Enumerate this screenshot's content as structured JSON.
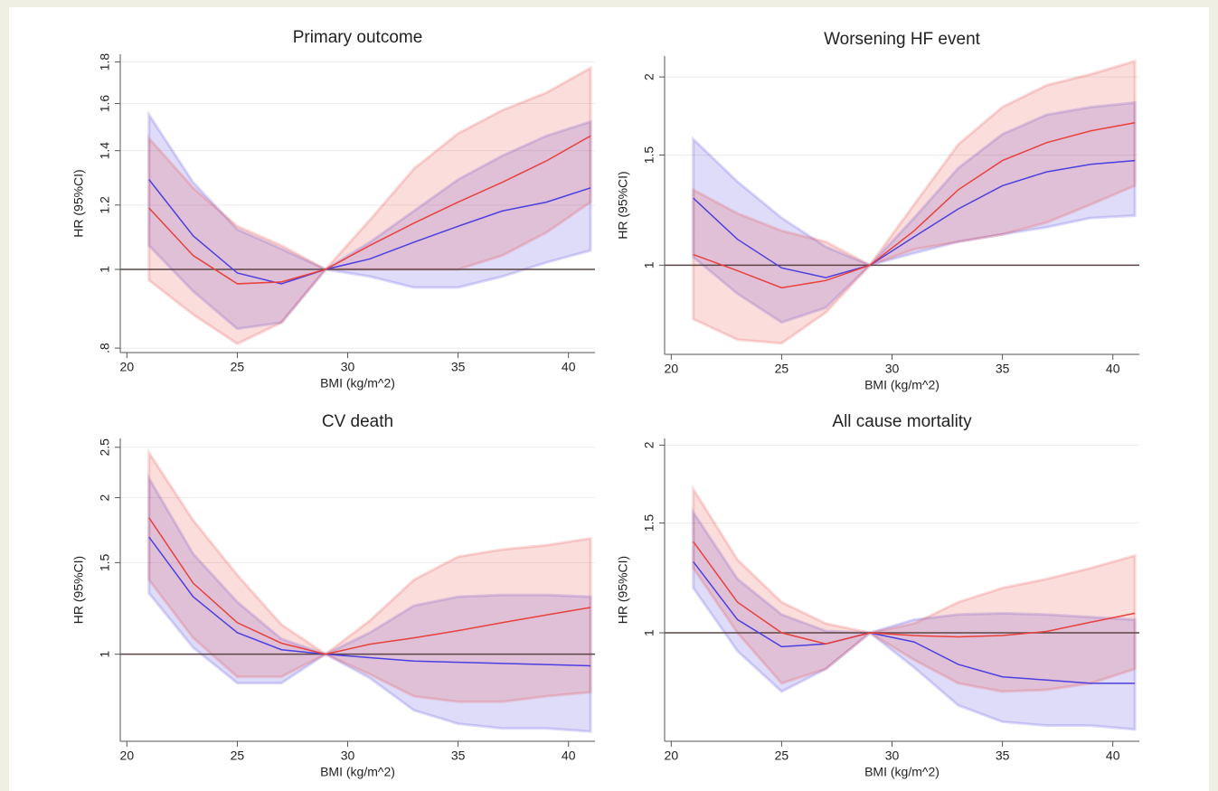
{
  "chart_data": [
    {
      "type": "line",
      "title": "Primary outcome",
      "xlabel": "BMI (kg/m^2)",
      "ylabel": "HR (95%CI)",
      "log_y": true,
      "grid": true,
      "refline": 1,
      "x": [
        21,
        23,
        25,
        27,
        29,
        31,
        33,
        35,
        37,
        39,
        41
      ],
      "xlim": [
        19.7,
        41.2
      ],
      "xticks": [
        20,
        25,
        30,
        35,
        40
      ],
      "ylim": [
        0.79,
        1.84
      ],
      "yticks": [
        {
          "value": 0.8,
          "label": ".8"
        },
        1,
        1.2,
        1.4,
        1.6,
        1.8
      ],
      "series": [
        {
          "color": "#4b3fe0",
          "values": [
            1.29,
            1.1,
            0.99,
            0.96,
            1,
            1.03,
            1.08,
            1.13,
            1.18,
            1.21,
            1.26
          ],
          "lower": [
            1.07,
            0.94,
            0.845,
            0.86,
            1,
            0.98,
            0.95,
            0.95,
            0.98,
            1.02,
            1.055
          ],
          "upper": [
            1.55,
            1.28,
            1.12,
            1.06,
            1,
            1.08,
            1.18,
            1.29,
            1.38,
            1.46,
            1.52
          ]
        },
        {
          "color": "#e8413c",
          "values": [
            1.19,
            1.04,
            0.96,
            0.965,
            1,
            1.07,
            1.14,
            1.21,
            1.28,
            1.36,
            1.46
          ],
          "lower": [
            0.97,
            0.88,
            0.81,
            0.86,
            1,
            1.0,
            1.0,
            1.0,
            1.04,
            1.11,
            1.21
          ],
          "upper": [
            1.45,
            1.26,
            1.13,
            1.07,
            1,
            1.15,
            1.33,
            1.47,
            1.57,
            1.65,
            1.77
          ]
        }
      ]
    },
    {
      "type": "line",
      "title": "Worsening HF event",
      "xlabel": "BMI (kg/m^2)",
      "ylabel": "HR (95%CI)",
      "log_y": true,
      "grid": true,
      "refline": 1,
      "x": [
        21,
        23,
        25,
        27,
        29,
        31,
        33,
        35,
        37,
        39,
        41
      ],
      "xlim": [
        19.7,
        41.2
      ],
      "xticks": [
        20,
        25,
        30,
        35,
        40
      ],
      "ylim": [
        0.72,
        2.16
      ],
      "yticks": [
        1,
        1.5,
        2
      ],
      "series": [
        {
          "color": "#4b3fe0",
          "values": [
            1.28,
            1.1,
            0.99,
            0.955,
            1,
            1.11,
            1.23,
            1.34,
            1.41,
            1.45,
            1.47
          ],
          "lower": [
            1.03,
            0.9,
            0.81,
            0.855,
            1,
            1.045,
            1.09,
            1.12,
            1.15,
            1.19,
            1.2
          ],
          "upper": [
            1.59,
            1.36,
            1.19,
            1.07,
            1,
            1.19,
            1.43,
            1.62,
            1.74,
            1.79,
            1.82
          ]
        },
        {
          "color": "#e8413c",
          "values": [
            1.04,
            0.98,
            0.92,
            0.945,
            1,
            1.135,
            1.32,
            1.47,
            1.57,
            1.64,
            1.69
          ],
          "lower": [
            0.82,
            0.76,
            0.75,
            0.84,
            1,
            1.06,
            1.09,
            1.12,
            1.17,
            1.25,
            1.34
          ],
          "upper": [
            1.32,
            1.21,
            1.135,
            1.09,
            1,
            1.25,
            1.56,
            1.79,
            1.94,
            2.02,
            2.12
          ]
        }
      ]
    },
    {
      "type": "line",
      "title": "CV death",
      "xlabel": "BMI (kg/m^2)",
      "ylabel": "HR (95%CI)",
      "log_y": true,
      "grid": true,
      "refline": 1,
      "x": [
        21,
        23,
        25,
        27,
        29,
        31,
        33,
        35,
        37,
        39,
        41
      ],
      "xlim": [
        19.7,
        41.2
      ],
      "xticks": [
        20,
        25,
        30,
        35,
        40
      ],
      "ylim": [
        0.68,
        2.6
      ],
      "yticks": [
        1,
        1.5,
        2,
        2.5
      ],
      "series": [
        {
          "color": "#4b3fe0",
          "values": [
            1.68,
            1.29,
            1.1,
            1.02,
            1,
            0.985,
            0.97,
            0.965,
            0.96,
            0.955,
            0.95
          ],
          "lower": [
            1.31,
            1.03,
            0.88,
            0.88,
            1,
            0.9,
            0.78,
            0.735,
            0.72,
            0.72,
            0.71
          ],
          "upper": [
            2.18,
            1.56,
            1.26,
            1.07,
            1,
            1.1,
            1.24,
            1.29,
            1.3,
            1.3,
            1.29
          ]
        },
        {
          "color": "#e8413c",
          "values": [
            1.83,
            1.37,
            1.15,
            1.05,
            1,
            1.045,
            1.075,
            1.11,
            1.15,
            1.19,
            1.23
          ],
          "lower": [
            1.39,
            1.075,
            0.905,
            0.905,
            1,
            0.915,
            0.83,
            0.81,
            0.81,
            0.83,
            0.845
          ],
          "upper": [
            2.44,
            1.81,
            1.42,
            1.14,
            1,
            1.16,
            1.39,
            1.54,
            1.59,
            1.62,
            1.67
          ]
        }
      ]
    },
    {
      "type": "line",
      "title": "All cause mortality",
      "xlabel": "BMI (kg/m^2)",
      "ylabel": "HR (95%CI)",
      "log_y": true,
      "grid": true,
      "refline": 1,
      "x": [
        21,
        23,
        25,
        27,
        29,
        31,
        33,
        35,
        37,
        39,
        41
      ],
      "xlim": [
        19.7,
        41.2
      ],
      "xticks": [
        20,
        25,
        30,
        35,
        40
      ],
      "ylim": [
        0.67,
        2.05
      ],
      "yticks": [
        1,
        1.5,
        2
      ],
      "series": [
        {
          "color": "#4b3fe0",
          "values": [
            1.3,
            1.05,
            0.95,
            0.96,
            1,
            0.967,
            0.89,
            0.85,
            0.84,
            0.83,
            0.83
          ],
          "lower": [
            1.18,
            0.935,
            0.805,
            0.875,
            1,
            0.88,
            0.765,
            0.72,
            0.71,
            0.71,
            0.7
          ],
          "upper": [
            1.56,
            1.22,
            1.07,
            1.007,
            1,
            1.05,
            1.07,
            1.075,
            1.07,
            1.06,
            1.05
          ]
        },
        {
          "color": "#e8413c",
          "values": [
            1.4,
            1.12,
            1.0,
            0.96,
            1,
            0.99,
            0.985,
            0.99,
            1.005,
            1.04,
            1.075
          ],
          "lower": [
            1.27,
            1.0,
            0.83,
            0.875,
            1,
            0.905,
            0.83,
            0.805,
            0.81,
            0.83,
            0.875
          ],
          "upper": [
            1.7,
            1.31,
            1.12,
            1.035,
            1,
            1.035,
            1.12,
            1.18,
            1.22,
            1.27,
            1.33
          ]
        }
      ]
    }
  ]
}
